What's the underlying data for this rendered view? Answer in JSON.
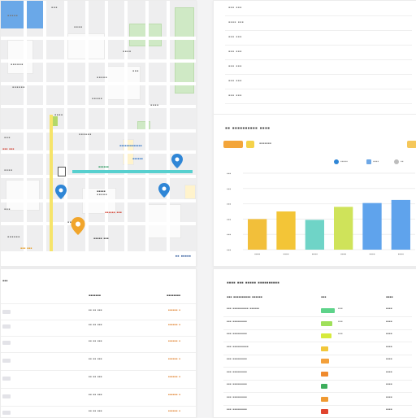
{
  "map": {
    "street_labels": [
      "▪▪▪▪▪",
      "▪▪▪",
      "▪▪▪▪▪▪",
      "▪▪▪▪",
      "▪▪▪▪▪",
      "▪▪▪",
      "▪▪▪▪▪▪",
      "▪▪▪▪",
      "▪▪▪▪▪▪",
      "▪▪▪",
      "▪▪▪▪",
      "▪▪▪▪▪",
      "▪▪▪",
      "▪▪▪▪▪▪",
      "▪▪▪▪",
      "▪▪▪▪▪",
      "▪▪▪▪",
      "▪▪▪"
    ],
    "poi_labels": [
      {
        "text": "▪▪▪▪▪▪▪▪▪▪▪▪▪",
        "color": "#3b7bc8"
      },
      {
        "text": "▪▪▪▪▪▪",
        "color": "#3b7bc8"
      },
      {
        "text": "▪▪▪▪▪▪",
        "color": "#2e9b62"
      },
      {
        "text": "▪▪▪▪▪",
        "color": "#555555"
      },
      {
        "text": "▪▪▪▪▪▪ ▪▪▪",
        "color": "#d24c3f"
      },
      {
        "text": "▪▪▪ ▪▪▪",
        "color": "#d24c3f"
      },
      {
        "text": "▪▪▪▪▪ ▪▪▪",
        "color": "#555555"
      },
      {
        "text": "▪▪▪ ▪▪▪",
        "color": "#e6a12f"
      }
    ],
    "pins": [
      {
        "color": "#2f86d6",
        "name": "location-pin-icon"
      },
      {
        "color": "#2f86d6",
        "name": "location-pin-icon"
      },
      {
        "color": "#2f86d6",
        "name": "location-pin-icon"
      },
      {
        "color": "#f1a52b",
        "name": "location-pin-icon"
      }
    ],
    "attribution": "▪▪ ▪▪▪▪▪"
  },
  "top_list": {
    "rows": [
      "▪▪▪ ▪▪▪",
      "▪▪▪▪ ▪▪▪",
      "▪▪▪ ▪▪▪",
      "▪▪▪ ▪▪▪",
      "▪▪▪ ▪▪▪",
      "▪▪▪ ▪▪▪",
      "▪▪▪ ▪▪▪"
    ]
  },
  "chart_panel": {
    "title": "▪▪ ▪▪▪▪▪▪▪▪▪▪ ▪▪▪▪",
    "filter_label": "▪▪▪▪▪▪▪",
    "legend": [
      {
        "label": "▪▪▪▪▪",
        "color": "#2f86d6"
      },
      {
        "label": "▪▪▪▪",
        "color": "#6fa8e6"
      },
      {
        "label": "▪▪",
        "color": "#bdbdbd"
      }
    ],
    "colors": {
      "chip_orange": "#f3a53a",
      "chip_yellow": "#f5d24a",
      "chip_right": "#f5c75a"
    }
  },
  "chart_data": {
    "type": "bar",
    "categories": [
      "▪▪▪▪",
      "▪▪▪▪",
      "▪▪▪▪",
      "▪▪▪▪",
      "▪▪▪▪",
      "▪▪▪▪"
    ],
    "values": [
      40,
      50,
      39,
      56,
      61,
      65
    ],
    "colors": [
      "#f2bf3a",
      "#f3c537",
      "#6fd4c7",
      "#cfe35a",
      "#5fa3ec",
      "#5fa3ec"
    ],
    "ylim": [
      0,
      100
    ],
    "ytick_labels": [
      "▪▪▪",
      "▪▪▪",
      "▪▪▪",
      "▪▪▪",
      "▪▪▪",
      "▪▪▪"
    ],
    "grid": true
  },
  "table": {
    "header": {
      "col1": "▪▪▪",
      "col2": "▪▪▪▪▪▪▪",
      "col3": "▪▪▪▪▪▪▪▪"
    },
    "rows": [
      {
        "c2": "▪▪ ▪▪ ▪▪▪",
        "c3": "▪▪▪▪▪▪ ▪"
      },
      {
        "c2": "▪▪ ▪▪ ▪▪▪",
        "c3": "▪▪▪▪▪▪ ▪"
      },
      {
        "c2": "▪▪ ▪▪ ▪▪▪",
        "c3": "▪▪▪▪▪▪ ▪"
      },
      {
        "c2": "▪▪ ▪▪ ▪▪▪",
        "c3": "▪▪▪▪▪▪ ▪"
      },
      {
        "c2": "▪▪ ▪▪ ▪▪▪",
        "c3": "▪▪▪▪▪▪ ▪"
      },
      {
        "c2": "▪▪ ▪▪ ▪▪▪",
        "c3": "▪▪▪▪▪▪ ▪"
      },
      {
        "c2": "▪▪ ▪▪ ▪▪▪",
        "c3": "▪▪▪▪▪▪ ▪"
      }
    ]
  },
  "report": {
    "title": "▪▪▪▪ ▪▪▪ ▪▪▪▪▪ ▪▪▪▪▪▪▪▪▪▪",
    "header": {
      "col1": "▪▪▪ ▪▪▪▪▪▪▪▪▪▪ ▪▪▪▪▪▪",
      "col2": "▪▪▪",
      "col3": "▪▪▪▪"
    },
    "rows": [
      {
        "name": "▪▪▪ ▪▪▪▪▪▪▪▪▪▪ ▪▪▪▪▪▪",
        "bar_fill": 0.85,
        "bar_color": "#5ed38a",
        "bar_value": "▪▪▪",
        "right": "▪▪▪▪"
      },
      {
        "name": "▪▪▪ ▪▪▪▪▪▪▪▪▪",
        "bar_fill": 0.7,
        "bar_color": "#9fe05a",
        "bar_value": "▪▪▪",
        "right": "▪▪▪▪"
      },
      {
        "name": "▪▪▪ ▪▪▪▪▪▪▪▪▪",
        "bar_fill": 0.65,
        "bar_color": "#d6ea3c",
        "bar_value": "▪▪▪",
        "right": "▪▪▪▪"
      },
      {
        "name": "▪▪▪ ▪▪▪▪▪▪▪▪▪▪",
        "bar_fill": 0.45,
        "bar_color": "#f2c73a",
        "bar_value": "",
        "right": "▪▪▪▪"
      },
      {
        "name": "▪▪▪ ▪▪▪▪▪▪▪▪▪",
        "bar_fill": 0.5,
        "bar_color": "#f3a03a",
        "bar_value": "",
        "right": "▪▪▪▪"
      },
      {
        "name": "▪▪▪ ▪▪▪▪▪▪▪▪▪",
        "bar_fill": 0.45,
        "bar_color": "#ef8a2e",
        "bar_value": "",
        "right": "▪▪▪▪"
      },
      {
        "name": "▪▪▪ ▪▪▪▪▪▪▪▪▪",
        "bar_fill": 0.4,
        "bar_color": "#3eae5c",
        "bar_value": "",
        "right": "▪▪▪▪"
      },
      {
        "name": "▪▪▪ ▪▪▪▪▪▪▪▪▪",
        "bar_fill": 0.45,
        "bar_color": "#f09a32",
        "bar_value": "",
        "right": "▪▪▪▪"
      },
      {
        "name": "▪▪▪ ▪▪▪▪▪▪▪▪▪",
        "bar_fill": 0.45,
        "bar_color": "#e0442e",
        "bar_value": "",
        "right": "▪▪▪▪"
      }
    ]
  }
}
